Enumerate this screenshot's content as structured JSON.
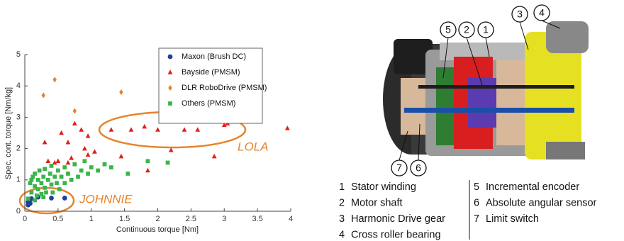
{
  "chart_data": {
    "type": "scatter",
    "x_label": "Continuous torque [Nm]",
    "y_label": "Spec. cont. torque [Nm/kg]",
    "xlim": [
      0,
      4
    ],
    "xticks": [
      0,
      0.5,
      1,
      1.5,
      2,
      2.5,
      3,
      3.5,
      4
    ],
    "ylim": [
      0,
      5
    ],
    "yticks": [
      0,
      1,
      2,
      3,
      4,
      5
    ],
    "grid": false,
    "legend": "upper right",
    "annotations": [
      "LOLA",
      "JOHNNIE"
    ],
    "series": [
      {
        "name": "Maxon (Brush DC)",
        "color": "#1f3f9a",
        "marker": "circle",
        "x": [
          0.05,
          0.07,
          0.1,
          0.08,
          0.2,
          0.4,
          0.6,
          0.05
        ],
        "values": [
          0.3,
          0.35,
          0.4,
          0.25,
          0.45,
          0.42,
          0.42,
          0.2
        ]
      },
      {
        "name": "Bayside (PMSM)",
        "color": "#e0201b",
        "marker": "triangle",
        "x": [
          0.3,
          0.35,
          0.5,
          0.55,
          0.65,
          0.65,
          0.7,
          0.75,
          0.9,
          0.95,
          0.95,
          1.05,
          1.3,
          1.45,
          1.6,
          1.8,
          1.85,
          2.0,
          2.2,
          2.4,
          2.6,
          2.85,
          3.0,
          3.05,
          3.95,
          0.45,
          0.85
        ],
        "values": [
          2.2,
          1.6,
          1.6,
          2.5,
          1.55,
          2.2,
          1.7,
          2.8,
          2.0,
          2.4,
          1.8,
          1.9,
          2.6,
          1.75,
          2.6,
          2.7,
          1.3,
          2.6,
          1.95,
          2.6,
          2.6,
          1.75,
          2.75,
          2.8,
          2.65,
          1.55,
          2.6
        ]
      },
      {
        "name": "DLR RoboDrive (PMSM)",
        "color": "#e8832a",
        "marker": "diamond",
        "x": [
          0.28,
          0.45,
          0.75,
          1.45
        ],
        "values": [
          3.7,
          4.2,
          3.2,
          3.8
        ]
      },
      {
        "name": "Others (PMSM)",
        "color": "#3cb44b",
        "marker": "square",
        "x": [
          0.05,
          0.08,
          0.1,
          0.1,
          0.12,
          0.15,
          0.15,
          0.18,
          0.2,
          0.2,
          0.22,
          0.25,
          0.25,
          0.28,
          0.3,
          0.3,
          0.32,
          0.35,
          0.38,
          0.4,
          0.4,
          0.42,
          0.45,
          0.48,
          0.5,
          0.52,
          0.55,
          0.6,
          0.6,
          0.65,
          0.7,
          0.75,
          0.8,
          0.85,
          0.9,
          0.95,
          1.0,
          1.1,
          1.2,
          1.3,
          1.55,
          1.85,
          2.15,
          0.15,
          0.28
        ],
        "values": [
          0.4,
          0.9,
          1.0,
          0.6,
          1.1,
          0.8,
          1.2,
          0.5,
          1.0,
          0.7,
          1.3,
          0.9,
          0.55,
          1.1,
          0.75,
          1.35,
          0.6,
          1.0,
          1.2,
          0.85,
          1.45,
          0.6,
          1.1,
          0.9,
          1.3,
          0.7,
          1.1,
          0.9,
          1.4,
          1.2,
          1.0,
          1.5,
          1.1,
          1.3,
          1.6,
          1.2,
          1.4,
          1.3,
          1.5,
          1.4,
          1.2,
          1.6,
          1.55,
          0.35,
          0.45
        ]
      }
    ]
  },
  "diagram": {
    "parts": [
      {
        "number": "1",
        "label": "Stator winding"
      },
      {
        "number": "2",
        "label": "Motor shaft"
      },
      {
        "number": "3",
        "label": "Harmonic Drive gear"
      },
      {
        "number": "4",
        "label": "Cross roller bearing"
      },
      {
        "number": "5",
        "label": "Incremental encoder"
      },
      {
        "number": "6",
        "label": "Absolute angular sensor"
      },
      {
        "number": "7",
        "label": "Limit switch"
      }
    ]
  }
}
